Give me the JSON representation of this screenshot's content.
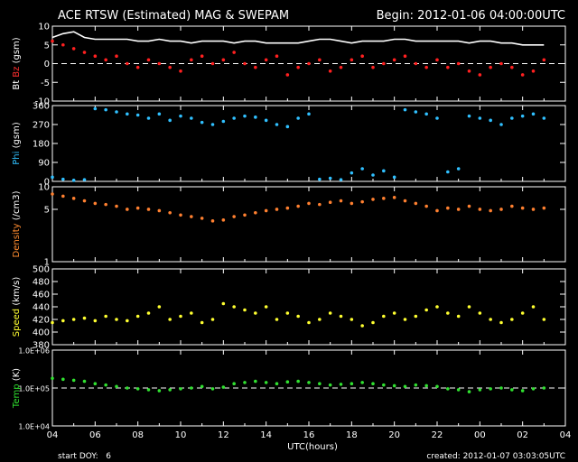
{
  "chart_data": {
    "type": "scatter",
    "title": "ACE RTSW (Estimated) MAG & SWEPAM",
    "begin_label": "Begin: 2012-01-06 04:00:00UTC",
    "xlabel": "UTC(hours)",
    "x_ticks": [
      "04",
      "06",
      "08",
      "10",
      "12",
      "14",
      "16",
      "18",
      "20",
      "22",
      "00",
      "02",
      "04"
    ],
    "x_range_hours": [
      0,
      24
    ],
    "footer_left": "start DOY:   6",
    "footer_right": "created: 2012-01-07 03:03:05UTC",
    "panels": [
      {
        "id": "mag",
        "ylabel_parts": [
          {
            "text": "Bt",
            "color": "#ffffff"
          },
          {
            "text": "Bz",
            "color": "#ff3030"
          },
          {
            "text": "(gsm)",
            "color": "#ffffff"
          }
        ],
        "ylim": [
          -10,
          10
        ],
        "scale": "linear",
        "y_ticks": [
          "-10",
          "-5",
          "0",
          "5",
          "10"
        ],
        "tick_values": [
          -10,
          -5,
          0,
          5,
          10
        ],
        "dashed_line": 0,
        "series": [
          {
            "name": "Bt",
            "color": "#ffffff",
            "style": "line",
            "x": [
              0,
              0.5,
              1,
              1.5,
              2,
              2.5,
              3,
              3.5,
              4,
              4.5,
              5,
              5.5,
              6,
              6.5,
              7,
              7.5,
              8,
              8.5,
              9,
              9.5,
              10,
              10.5,
              11,
              11.5,
              12,
              12.5,
              13,
              13.5,
              14,
              14.5,
              15,
              15.5,
              16,
              16.5,
              17,
              17.5,
              18,
              18.5,
              19,
              19.5,
              20,
              20.5,
              21,
              21.5,
              22,
              22.5,
              23
            ],
            "y": [
              7,
              8,
              8.5,
              7,
              6.5,
              6.5,
              6.5,
              6.5,
              6,
              6,
              6.5,
              6,
              6,
              5.5,
              6,
              6,
              6,
              5.5,
              6,
              6,
              5.5,
              5.5,
              5.5,
              5.5,
              6,
              6.5,
              6.5,
              6,
              5.5,
              6,
              6,
              6,
              6.5,
              6.5,
              6,
              6,
              6,
              6,
              6,
              5.5,
              6,
              6,
              5.5,
              5.5,
              5,
              5,
              5
            ]
          },
          {
            "name": "Bz",
            "color": "#ff2020",
            "style": "points",
            "x": [
              0,
              0.5,
              1,
              1.5,
              2,
              2.5,
              3,
              3.5,
              4,
              4.5,
              5,
              5.5,
              6,
              6.5,
              7,
              7.5,
              8,
              8.5,
              9,
              9.5,
              10,
              10.5,
              11,
              11.5,
              12,
              12.5,
              13,
              13.5,
              14,
              14.5,
              15,
              15.5,
              16,
              16.5,
              17,
              17.5,
              18,
              18.5,
              19,
              19.5,
              20,
              20.5,
              21,
              21.5,
              22,
              22.5,
              23
            ],
            "y": [
              6,
              5,
              4,
              3,
              2,
              1,
              2,
              0,
              -1,
              1,
              0,
              -1,
              -2,
              1,
              2,
              0,
              1,
              3,
              0,
              -1,
              1,
              2,
              -3,
              -1,
              0,
              1,
              -2,
              -1,
              1,
              2,
              -1,
              0,
              1,
              2,
              0,
              -1,
              1,
              -1,
              0,
              -2,
              -3,
              -1,
              0,
              -1,
              -3,
              -2,
              1
            ]
          }
        ]
      },
      {
        "id": "phi",
        "ylabel_parts": [
          {
            "text": "Phi",
            "color": "#30c0ff"
          },
          {
            "text": "(gsm)",
            "color": "#ffffff"
          }
        ],
        "ylim": [
          0,
          360
        ],
        "scale": "linear",
        "y_ticks": [
          "0",
          "90",
          "180",
          "270",
          "360"
        ],
        "tick_values": [
          0,
          90,
          180,
          270,
          360
        ],
        "series": [
          {
            "name": "Phi",
            "color": "#30c0ff",
            "style": "points",
            "x": [
              0,
              0.5,
              1,
              1.5,
              2,
              2.5,
              3,
              3.5,
              4,
              4.5,
              5,
              5.5,
              6,
              6.5,
              7,
              7.5,
              8,
              8.5,
              9,
              9.5,
              10,
              10.5,
              11,
              11.5,
              12,
              12.5,
              13,
              13.5,
              14,
              14.5,
              15,
              15.5,
              16,
              16.5,
              17,
              17.5,
              18,
              18.5,
              19,
              19.5,
              20,
              20.5,
              21,
              21.5,
              22,
              22.5,
              23
            ],
            "y": [
              20,
              10,
              5,
              8,
              345,
              340,
              330,
              320,
              315,
              300,
              320,
              290,
              310,
              300,
              280,
              270,
              285,
              300,
              310,
              305,
              290,
              270,
              260,
              300,
              320,
              10,
              15,
              8,
              40,
              60,
              30,
              50,
              20,
              340,
              330,
              320,
              300,
              45,
              60,
              310,
              300,
              290,
              270,
              300,
              310,
              320,
              300
            ]
          }
        ]
      },
      {
        "id": "density",
        "ylabel_parts": [
          {
            "text": "Density",
            "color": "#ff8c30"
          },
          {
            "text": "(/cm3)",
            "color": "#ffffff"
          }
        ],
        "ylim": [
          1,
          10
        ],
        "scale": "log",
        "y_ticks": [
          "1",
          "5",
          "10"
        ],
        "tick_values": [
          1,
          5,
          10
        ],
        "series": [
          {
            "name": "Density",
            "color": "#ff8030",
            "style": "points",
            "x": [
              0,
              0.5,
              1,
              1.5,
              2,
              2.5,
              3,
              3.5,
              4,
              4.5,
              5,
              5.5,
              6,
              6.5,
              7,
              7.5,
              8,
              8.5,
              9,
              9.5,
              10,
              10.5,
              11,
              11.5,
              12,
              12.5,
              13,
              13.5,
              14,
              14.5,
              15,
              15.5,
              16,
              16.5,
              17,
              17.5,
              18,
              18.5,
              19,
              19.5,
              20,
              20.5,
              21,
              21.5,
              22,
              22.5,
              23
            ],
            "y": [
              8,
              7.5,
              7,
              6.5,
              6,
              5.8,
              5.5,
              5,
              5.2,
              5,
              4.8,
              4.5,
              4.2,
              4,
              3.8,
              3.5,
              3.6,
              4,
              4.2,
              4.5,
              4.8,
              5,
              5.2,
              5.5,
              6,
              5.8,
              6.2,
              6.5,
              6,
              6.3,
              6.8,
              7,
              7.2,
              6.5,
              6,
              5.5,
              4.8,
              5.2,
              5,
              5.5,
              5,
              4.8,
              5,
              5.5,
              5.2,
              5,
              5.2
            ]
          }
        ]
      },
      {
        "id": "speed",
        "ylabel_parts": [
          {
            "text": "Speed",
            "color": "#ffff30"
          },
          {
            "text": "(km/s)",
            "color": "#ffffff"
          }
        ],
        "ylim": [
          380,
          500
        ],
        "scale": "linear",
        "y_ticks": [
          "380",
          "400",
          "420",
          "440",
          "460",
          "480",
          "500"
        ],
        "tick_values": [
          380,
          400,
          420,
          440,
          460,
          480,
          500
        ],
        "series": [
          {
            "name": "Speed",
            "color": "#ffff30",
            "style": "points",
            "x": [
              0,
              0.5,
              1,
              1.5,
              2,
              2.5,
              3,
              3.5,
              4,
              4.5,
              5,
              5.5,
              6,
              6.5,
              7,
              7.5,
              8,
              8.5,
              9,
              9.5,
              10,
              10.5,
              11,
              11.5,
              12,
              12.5,
              13,
              13.5,
              14,
              14.5,
              15,
              15.5,
              16,
              16.5,
              17,
              17.5,
              18,
              18.5,
              19,
              19.5,
              20,
              20.5,
              21,
              21.5,
              22,
              22.5,
              23
            ],
            "y": [
              415,
              418,
              420,
              422,
              418,
              425,
              420,
              418,
              425,
              430,
              440,
              420,
              425,
              430,
              415,
              420,
              445,
              440,
              435,
              430,
              440,
              420,
              430,
              425,
              415,
              420,
              430,
              425,
              420,
              410,
              415,
              425,
              430,
              420,
              425,
              435,
              440,
              430,
              425,
              440,
              430,
              420,
              415,
              420,
              430,
              440,
              420
            ]
          }
        ]
      },
      {
        "id": "temp",
        "ylabel_parts": [
          {
            "text": "Temp",
            "color": "#30e030"
          },
          {
            "text": "(K)",
            "color": "#ffffff"
          }
        ],
        "ylim": [
          10000,
          1000000
        ],
        "scale": "log",
        "y_ticks": [
          "1.0E+04",
          "1.0E+05",
          "1.0E+06"
        ],
        "tick_values": [
          10000,
          100000,
          1000000
        ],
        "dashed_line": 100000,
        "series": [
          {
            "name": "Temp",
            "color": "#30e030",
            "style": "points",
            "x": [
              0,
              0.5,
              1,
              1.5,
              2,
              2.5,
              3,
              3.5,
              4,
              4.5,
              5,
              5.5,
              6,
              6.5,
              7,
              7.5,
              8,
              8.5,
              9,
              9.5,
              10,
              10.5,
              11,
              11.5,
              12,
              12.5,
              13,
              13.5,
              14,
              14.5,
              15,
              15.5,
              16,
              16.5,
              17,
              17.5,
              18,
              18.5,
              19,
              19.5,
              20,
              20.5,
              21,
              21.5,
              22,
              22.5,
              23
            ],
            "y": [
              180000,
              170000,
              160000,
              150000,
              130000,
              120000,
              110000,
              100000,
              95000,
              90000,
              85000,
              90000,
              95000,
              100000,
              110000,
              95000,
              105000,
              130000,
              140000,
              150000,
              140000,
              130000,
              145000,
              150000,
              140000,
              130000,
              120000,
              125000,
              130000,
              140000,
              130000,
              120000,
              115000,
              110000,
              120000,
              115000,
              110000,
              95000,
              90000,
              80000,
              90000,
              95000,
              100000,
              90000,
              85000,
              95000,
              100000
            ]
          }
        ]
      }
    ]
  }
}
